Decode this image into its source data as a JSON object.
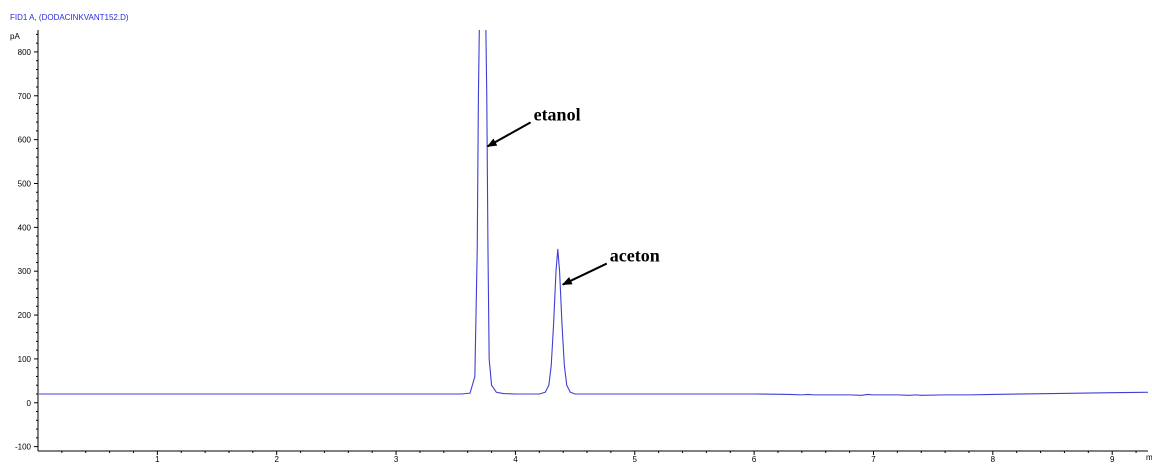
{
  "chart_data": {
    "type": "line",
    "title": "FID1 A, (DODACINKVANT152.D)",
    "ylabel": "pA",
    "xlabel": "m",
    "xlim": [
      0,
      9.3
    ],
    "ylim": [
      -110,
      850
    ],
    "x_ticks": [
      1,
      2,
      3,
      4,
      5,
      6,
      7,
      8,
      9
    ],
    "y_ticks": [
      -100,
      0,
      100,
      200,
      300,
      400,
      500,
      600,
      700,
      800
    ],
    "grid": false,
    "series": [
      {
        "color": "#3f3fd4",
        "x": [
          0.0,
          0.5,
          1.0,
          1.5,
          2.0,
          2.5,
          3.0,
          3.4,
          3.55,
          3.62,
          3.66,
          3.68,
          3.69,
          3.7,
          3.75,
          3.76,
          3.77,
          3.78,
          3.8,
          3.84,
          3.9,
          4.0,
          4.1,
          4.2,
          4.25,
          4.28,
          4.3,
          4.32,
          4.34,
          4.355,
          4.37,
          4.39,
          4.41,
          4.43,
          4.46,
          4.5,
          4.6,
          5.0,
          5.5,
          6.0,
          6.3,
          6.4,
          6.45,
          6.5,
          6.6,
          6.8,
          6.9,
          6.95,
          7.0,
          7.2,
          7.3,
          7.35,
          7.4,
          7.6,
          7.8,
          8.0,
          8.5,
          9.0,
          9.3
        ],
        "y": [
          20,
          20,
          20,
          20,
          20,
          20,
          20,
          20,
          20,
          22,
          60,
          350,
          700,
          900,
          900,
          700,
          350,
          100,
          40,
          24,
          21,
          20,
          20,
          20,
          24,
          40,
          85,
          180,
          300,
          350,
          300,
          180,
          85,
          40,
          24,
          20,
          20,
          20,
          20,
          20,
          19,
          18,
          19,
          18,
          18,
          18,
          17,
          19,
          18,
          18,
          17,
          18,
          17,
          18,
          18,
          19,
          21,
          23,
          24
        ]
      }
    ],
    "annotations": [
      {
        "text": "etanol",
        "arrow_to": [
          3.75,
          580
        ]
      },
      {
        "text": "aceton",
        "arrow_to": [
          4.38,
          265
        ]
      }
    ]
  }
}
